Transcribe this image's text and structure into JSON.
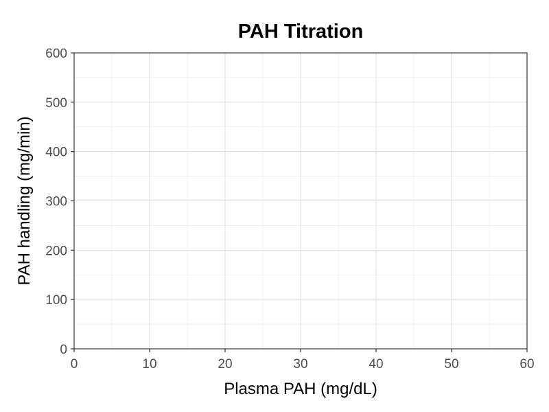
{
  "chart_data": {
    "type": "scatter",
    "title": "PAH Titration",
    "xlabel": "Plasma PAH (mg/dL)",
    "ylabel": "PAH handling (mg/min)",
    "xlim": [
      0,
      60
    ],
    "ylim": [
      0,
      600
    ],
    "x_ticks": [
      0,
      10,
      20,
      30,
      40,
      50,
      60
    ],
    "y_ticks": [
      0,
      100,
      200,
      300,
      400,
      500,
      600
    ],
    "x_minor": [
      5,
      15,
      25,
      35,
      45,
      55
    ],
    "y_minor": [
      50,
      150,
      250,
      350,
      450,
      550
    ],
    "grid": true,
    "series": []
  }
}
